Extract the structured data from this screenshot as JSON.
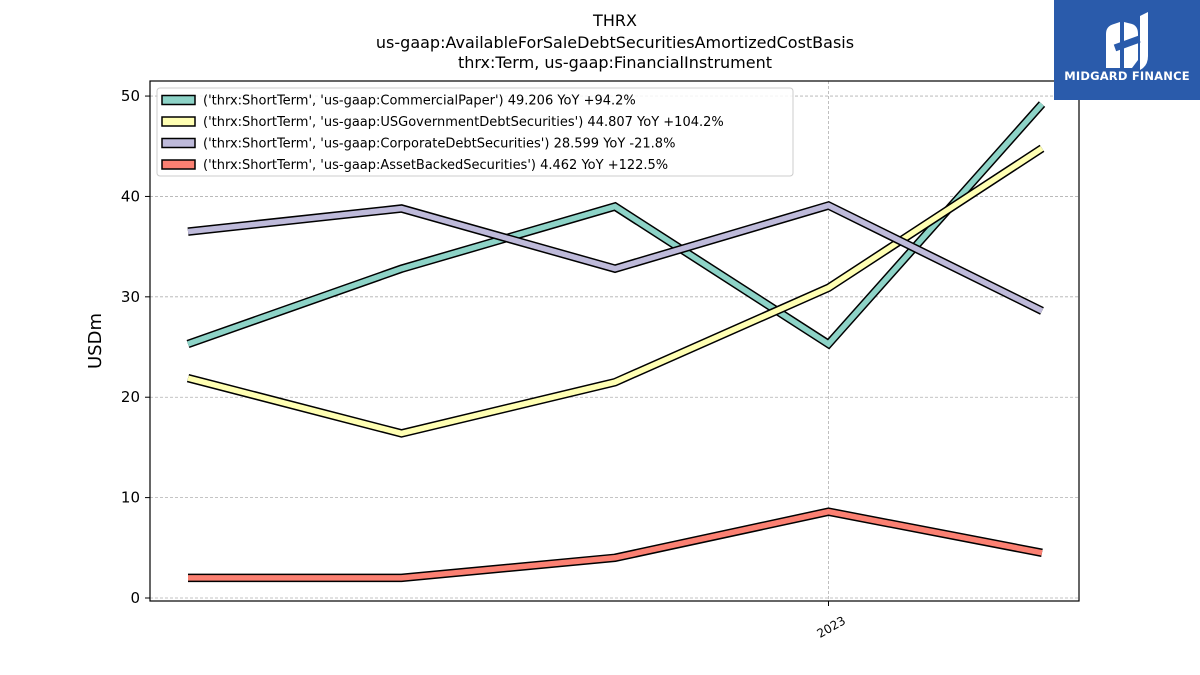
{
  "chart_data": {
    "type": "line",
    "title": [
      "THRX",
      "us-gaap:AvailableForSaleDebtSecuritiesAmortizedCostBasis",
      "thrx:Term, us-gaap:FinancialInstrument"
    ],
    "ylabel": "USDm",
    "xlabel": "",
    "ylim": [
      -0.3,
      51.5
    ],
    "yticks": [
      0,
      10,
      20,
      30,
      40,
      50
    ],
    "xtick_labels": [
      "2023"
    ],
    "grid": true,
    "legend_position": "upper-left",
    "series": [
      {
        "name": "('thrx:ShortTerm', 'us-gaap:CommercialPaper') 49.206 YoY +94.2%",
        "color": "#8dd3c7",
        "values": [
          25.3,
          32.8,
          39.0,
          25.3,
          49.2
        ]
      },
      {
        "name": "('thrx:ShortTerm', 'us-gaap:USGovernmentDebtSecurities') 44.807 YoY +104.2%",
        "color": "#ffffb3",
        "values": [
          21.9,
          16.4,
          21.5,
          30.9,
          44.8
        ]
      },
      {
        "name": "('thrx:ShortTerm', 'us-gaap:CorporateDebtSecurities') 28.599 YoY -21.8%",
        "color": "#bebada",
        "values": [
          36.5,
          38.8,
          32.8,
          39.1,
          28.6
        ]
      },
      {
        "name": "('thrx:ShortTerm', 'us-gaap:AssetBackedSecurities') 4.462 YoY +122.5%",
        "color": "#fb8072",
        "values": [
          2.0,
          2.0,
          4.0,
          8.6,
          4.5
        ]
      }
    ]
  },
  "logo": {
    "name": "MIDGARD FINANCE",
    "icon": "midgard-logo-icon",
    "background": "#2a5bab"
  }
}
